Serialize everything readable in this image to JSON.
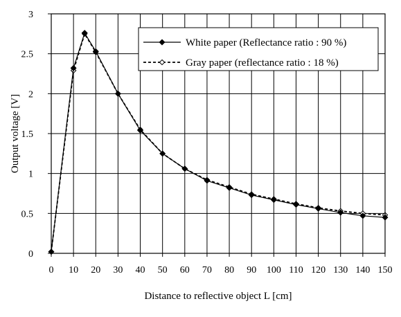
{
  "chart_data": {
    "type": "line",
    "title": "",
    "xlabel": "Distance to reflective object L [cm]",
    "ylabel": "Output voltage [V]",
    "xlim": [
      0,
      150
    ],
    "ylim": [
      0,
      3
    ],
    "x_ticks": [
      "0",
      "10",
      "20",
      "30",
      "40",
      "50",
      "60",
      "70",
      "80",
      "90",
      "100",
      "110",
      "120",
      "130",
      "140",
      "150"
    ],
    "y_ticks": [
      "0",
      "0.5",
      "1",
      "1.5",
      "2",
      "2.5",
      "3"
    ],
    "grid": true,
    "legend_position": "top-right",
    "series": [
      {
        "name": "White paper (Reflectance ratio : 90 %)",
        "style": "solid",
        "marker": "filled-diamond",
        "x": [
          0,
          10,
          15,
          20,
          30,
          40,
          50,
          60,
          70,
          80,
          90,
          100,
          110,
          120,
          130,
          140,
          150
        ],
        "y": [
          0.02,
          2.32,
          2.76,
          2.53,
          2.0,
          1.54,
          1.25,
          1.06,
          0.91,
          0.82,
          0.73,
          0.67,
          0.61,
          0.56,
          0.51,
          0.47,
          0.45
        ]
      },
      {
        "name": "Gray paper (reflectance ratio : 18 %)",
        "style": "dashed",
        "marker": "open-diamond",
        "x": [
          0,
          10,
          15,
          20,
          30,
          40,
          50,
          60,
          70,
          80,
          90,
          100,
          110,
          120,
          130,
          140,
          150
        ],
        "y": [
          0.02,
          2.29,
          2.75,
          2.52,
          2.0,
          1.55,
          1.25,
          1.06,
          0.92,
          0.83,
          0.74,
          0.68,
          0.62,
          0.57,
          0.53,
          0.5,
          0.48
        ]
      }
    ]
  }
}
